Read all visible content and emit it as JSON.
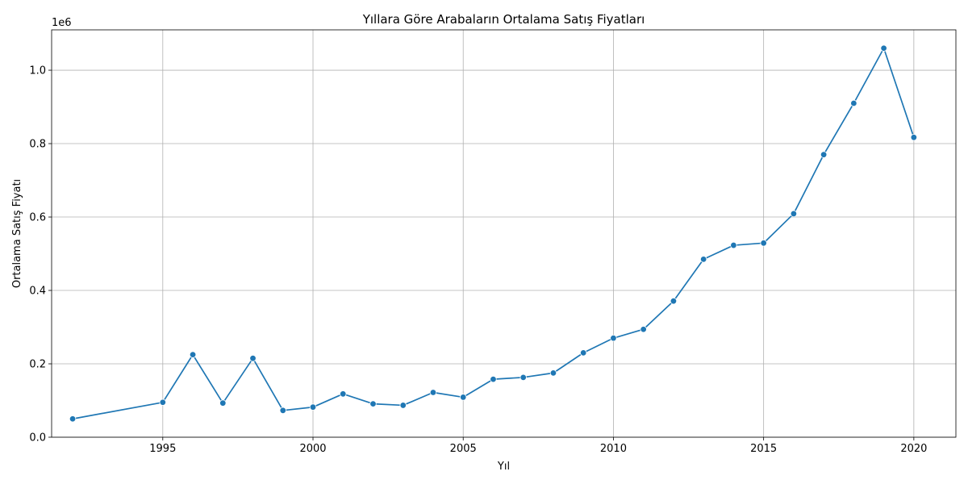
{
  "chart_data": {
    "type": "line",
    "title": "Yıllara Göre Arabaların Ortalama Satış Fiyatları",
    "xlabel": "Yıl",
    "ylabel": "Ortalama Satış Fiyatı",
    "y_offset_text": "1e6",
    "xlim": [
      1991.3,
      2021.4
    ],
    "ylim": [
      0,
      1.11
    ],
    "x_ticks": [
      1995,
      2000,
      2005,
      2010,
      2015,
      2020
    ],
    "x_tick_labels": [
      "1995",
      "2000",
      "2005",
      "2010",
      "2015",
      "2020"
    ],
    "y_ticks": [
      0.0,
      0.2,
      0.4,
      0.6,
      0.8,
      1.0
    ],
    "y_tick_labels": [
      "0.0",
      "0.2",
      "0.4",
      "0.6",
      "0.8",
      "1.0"
    ],
    "grid": true,
    "series_color": "#1f77b4",
    "series": [
      {
        "x": [
          1992,
          1995,
          1996,
          1997,
          1998,
          1999,
          2000,
          2001,
          2002,
          2003,
          2004,
          2005,
          2006,
          2007,
          2008,
          2009,
          2010,
          2011,
          2012,
          2013,
          2014,
          2015,
          2016,
          2017,
          2018,
          2019,
          2020
        ],
        "y": [
          0.05,
          0.095,
          0.225,
          0.093,
          0.215,
          0.073,
          0.082,
          0.118,
          0.091,
          0.087,
          0.122,
          0.109,
          0.158,
          0.163,
          0.175,
          0.23,
          0.27,
          0.294,
          0.371,
          0.485,
          0.523,
          0.529,
          0.609,
          0.77,
          0.91,
          1.06,
          0.817
        ]
      }
    ]
  }
}
